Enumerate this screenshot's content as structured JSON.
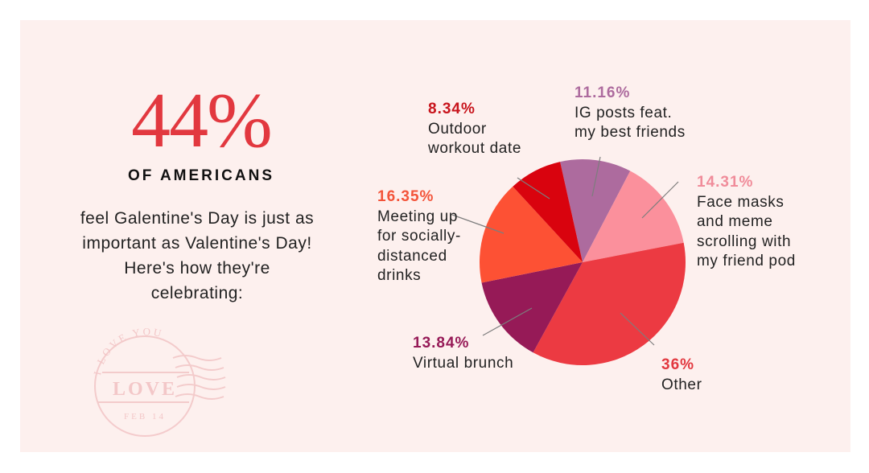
{
  "headline": {
    "stat": "44%",
    "subhead": "OF AMERICANS",
    "body_lines": [
      "feel Galentine's Day is just as",
      "important as Valentine's Day!",
      "Here's how they're",
      "celebrating:"
    ]
  },
  "stamp": {
    "top_text": "I LOVE YOU",
    "middle_text": "LOVE",
    "bottom_text": "FEB 14"
  },
  "colors": {
    "background": "#fdf0ee",
    "accent": "#e2383f",
    "text": "#222222"
  },
  "chart_data": {
    "type": "pie",
    "title": "How Americans are celebrating Galentine's Day",
    "start_angle_deg": -12.6,
    "direction": "clockwise",
    "slices": [
      {
        "label": "IG posts feat. my best friends",
        "value": 11.16,
        "pct_label": "11.16%",
        "color": "#ad6b9e",
        "label_color": "#ad6b9e"
      },
      {
        "label": "Face masks and meme scrolling with my friend pod",
        "value": 14.31,
        "pct_label": "14.31%",
        "color": "#fb909c",
        "label_color": "#f08c9a"
      },
      {
        "label": "Other",
        "value": 36,
        "pct_label": "36%",
        "color": "#ec3a42",
        "label_color": "#e2383f"
      },
      {
        "label": "Virtual brunch",
        "value": 13.84,
        "pct_label": "13.84%",
        "color": "#961a57",
        "label_color": "#961a57"
      },
      {
        "label": "Meeting up for socially-distanced drinks",
        "value": 16.35,
        "pct_label": "16.35%",
        "color": "#fd5134",
        "label_color": "#f3543a"
      },
      {
        "label": "Outdoor workout date",
        "value": 8.34,
        "pct_label": "8.34%",
        "color": "#d9030e",
        "label_color": "#c8141c"
      }
    ]
  },
  "labels": {
    "ig": {
      "pct": "11.16%",
      "lines": [
        "IG posts feat.",
        "my best friends"
      ]
    },
    "face": {
      "pct": "14.31%",
      "lines": [
        "Face masks",
        "and meme",
        "scrolling with",
        "my friend pod"
      ]
    },
    "other": {
      "pct": "36%",
      "lines": [
        "Other"
      ]
    },
    "brunch": {
      "pct": "13.84%",
      "lines": [
        "Virtual brunch"
      ]
    },
    "meetup": {
      "pct": "16.35%",
      "lines": [
        "Meeting up",
        "for socially-",
        "distanced",
        "drinks"
      ]
    },
    "outdoor": {
      "pct": "8.34%",
      "lines": [
        "Outdoor",
        "workout date"
      ]
    }
  }
}
